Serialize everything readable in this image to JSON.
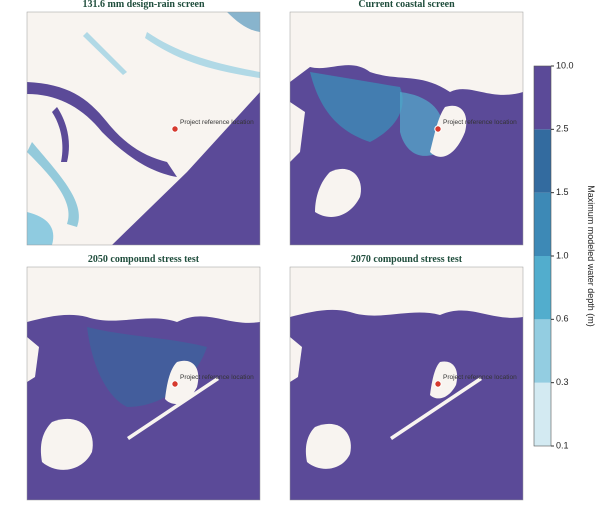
{
  "panels": [
    {
      "title": "131.6 mm design-rain screen",
      "marker_label": "Project reference location"
    },
    {
      "title": "Current coastal screen",
      "marker_label": "Project reference location"
    },
    {
      "title": "2050 compound stress test",
      "marker_label": "Project reference location"
    },
    {
      "title": "2070 compound stress test",
      "marker_label": "Project reference location"
    }
  ],
  "colorbar": {
    "label": "Maximum modeled water depth (m)",
    "ticks": [
      {
        "value": 0.1,
        "label": "0.1"
      },
      {
        "value": 0.3,
        "label": "0.3"
      },
      {
        "value": 0.6,
        "label": "0.6"
      },
      {
        "value": 1.0,
        "label": "1.0"
      },
      {
        "value": 1.5,
        "label": "1.5"
      },
      {
        "value": 2.5,
        "label": "2.5"
      },
      {
        "value": 10.0,
        "label": "10.0"
      }
    ],
    "colors": [
      "#d3eaf2",
      "#93cde1",
      "#52adcd",
      "#3d89b6",
      "#336b9f",
      "#5b4a98"
    ]
  }
}
